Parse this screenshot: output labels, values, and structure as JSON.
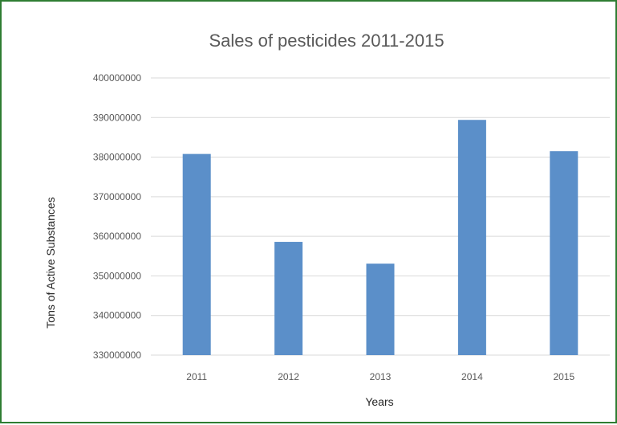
{
  "chart_data": {
    "type": "bar",
    "title": "Sales of pesticides 2011-2015",
    "xlabel": "Years",
    "ylabel": "Tons of Active Substances",
    "categories": [
      "2011",
      "2012",
      "2013",
      "2014",
      "2015"
    ],
    "values": [
      380800000,
      358600000,
      353100000,
      389400000,
      381500000
    ],
    "ylim": [
      330000000,
      400000000
    ],
    "yticks": [
      "330000000",
      "340000000",
      "350000000",
      "360000000",
      "370000000",
      "380000000",
      "390000000",
      "400000000"
    ],
    "grid": true,
    "legend": "none",
    "bar_color": "#5b8fc9"
  },
  "colors": {
    "frame_border": "#2e7d32",
    "text": "#595959",
    "gridline": "#d9d9d9"
  }
}
